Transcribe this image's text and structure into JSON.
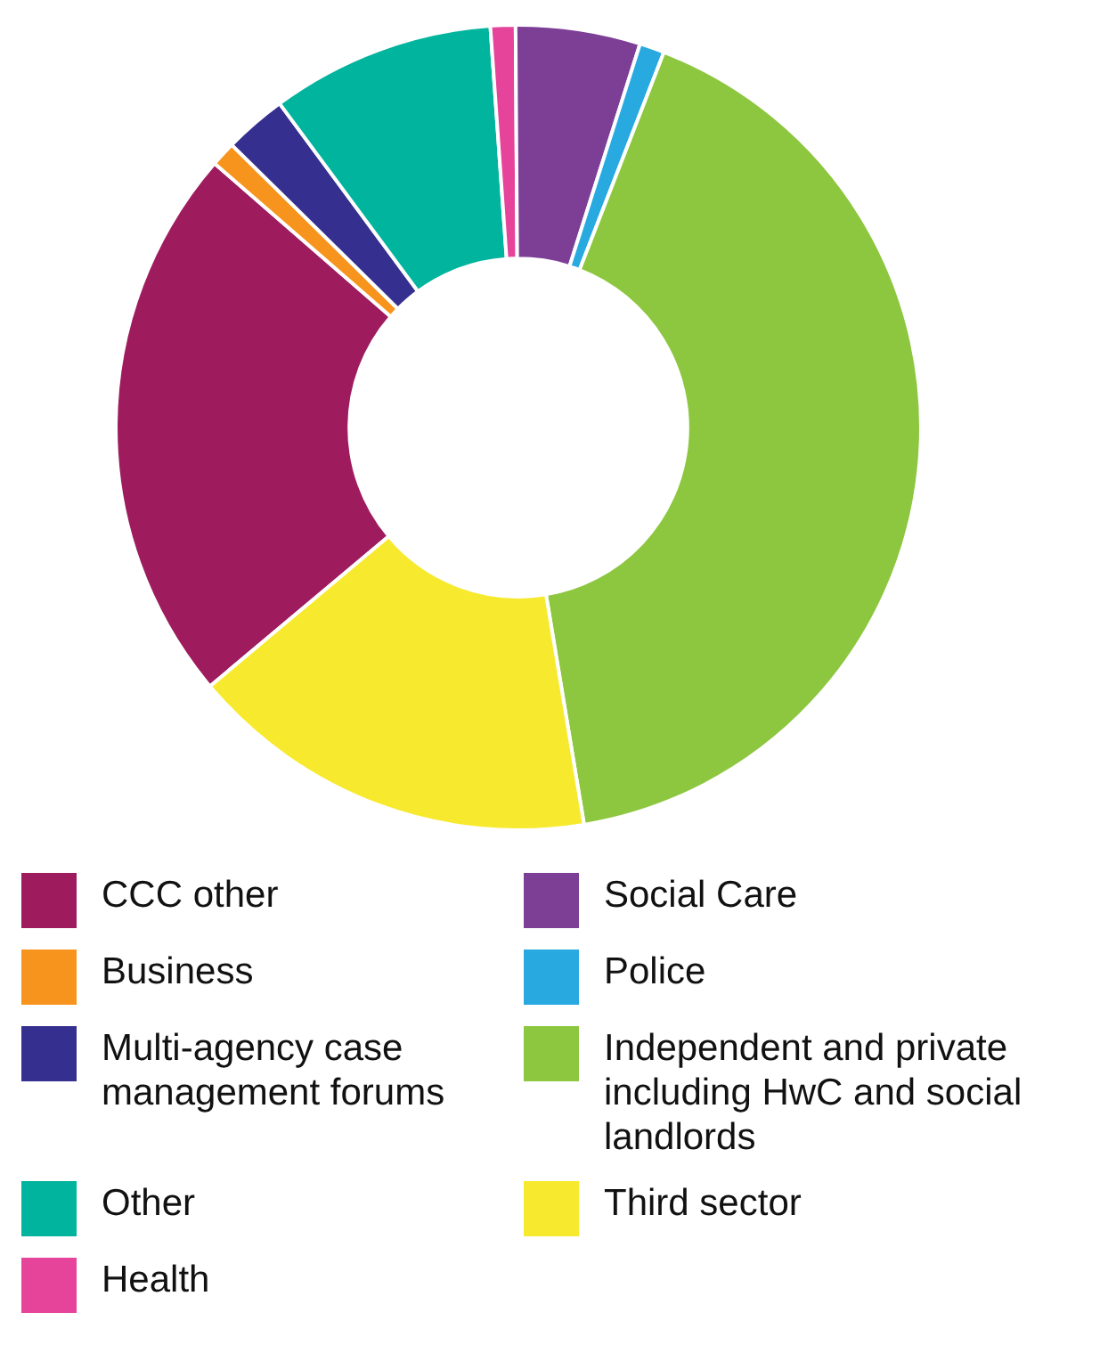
{
  "chart_data": {
    "type": "donut",
    "categories": [
      "CCC other",
      "Business",
      "Multi-agency case management forums",
      "Other",
      "Health",
      "Social Care",
      "Police",
      "Independent and private including HwC and social landlords",
      "Third sector"
    ],
    "values": [
      22.5,
      1,
      2.5,
      9,
      1,
      5,
      1,
      41.5,
      16.5
    ],
    "colors": [
      "#9e1c5e",
      "#f7941d",
      "#35308f",
      "#00b49d",
      "#e6449a",
      "#7d3f96",
      "#28a9e0",
      "#8dc63f",
      "#f7ea2e"
    ],
    "legend": "bottom"
  }
}
